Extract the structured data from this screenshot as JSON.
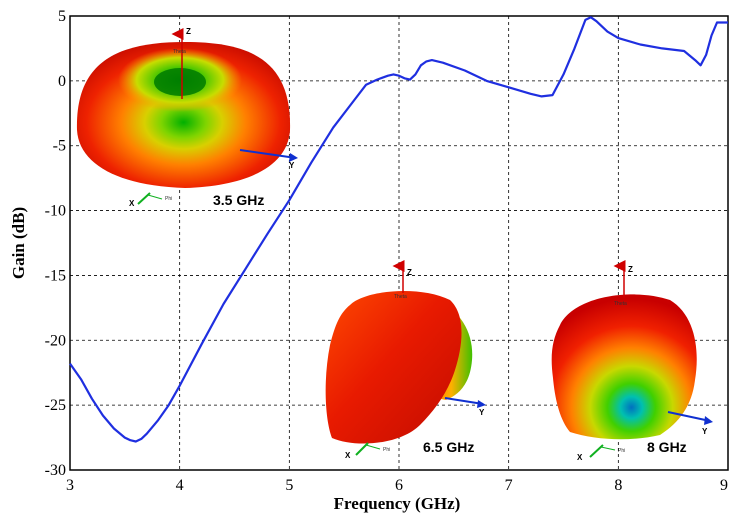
{
  "chart_data": {
    "type": "line",
    "xlabel": "Frequency (GHz)",
    "ylabel": "Gain (dB)",
    "xlim": [
      3,
      9
    ],
    "ylim": [
      -30,
      5
    ],
    "xticks": [
      "3",
      "4",
      "5",
      "6",
      "7",
      "8",
      "9"
    ],
    "yticks": [
      "5",
      "0",
      "-5",
      "-10",
      "-15",
      "-20",
      "-25",
      "-30"
    ],
    "grid": "dashed",
    "line_color": "#1f2fe0",
    "series": [
      {
        "x": [
          3.0,
          3.1,
          3.2,
          3.3,
          3.4,
          3.5,
          3.55,
          3.6,
          3.65,
          3.7,
          3.8,
          3.9,
          4.0,
          4.2,
          4.4,
          4.6,
          4.8,
          5.0,
          5.2,
          5.4,
          5.6,
          5.7,
          5.8,
          5.9,
          5.95,
          6.0,
          6.05,
          6.1,
          6.15,
          6.2,
          6.25,
          6.3,
          6.4,
          6.6,
          6.8,
          7.0,
          7.2,
          7.3,
          7.4,
          7.5,
          7.6,
          7.7,
          7.75,
          7.8,
          7.9,
          8.0,
          8.2,
          8.4,
          8.6,
          8.7,
          8.75,
          8.8,
          8.85,
          8.9,
          9.0,
          9.1
        ],
        "y": [
          -21.8,
          -23.0,
          -24.5,
          -25.8,
          -26.8,
          -27.5,
          -27.7,
          -27.8,
          -27.6,
          -27.2,
          -26.2,
          -25.0,
          -23.5,
          -20.3,
          -17.2,
          -14.5,
          -11.8,
          -9.2,
          -6.3,
          -3.6,
          -1.4,
          -0.3,
          0.1,
          0.4,
          0.5,
          0.4,
          0.2,
          0.1,
          0.5,
          1.2,
          1.5,
          1.6,
          1.4,
          0.8,
          0.0,
          -0.5,
          -1.0,
          -1.2,
          -1.1,
          0.5,
          2.5,
          4.7,
          4.9,
          4.6,
          3.8,
          3.3,
          2.8,
          2.5,
          2.3,
          1.6,
          1.2,
          2.0,
          3.5,
          4.5,
          4.5,
          4.5
        ]
      }
    ]
  },
  "patterns": [
    {
      "label": "3.5 GHz",
      "x_axis": "X",
      "y_axis": "Y",
      "z_axis": "Z",
      "theta": "Theta",
      "phi": "Phi"
    },
    {
      "label": "6.5 GHz",
      "x_axis": "X",
      "y_axis": "Y",
      "z_axis": "Z",
      "theta": "Theta",
      "phi": "Phi"
    },
    {
      "label": "8 GHz",
      "x_axis": "X",
      "y_axis": "Y",
      "z_axis": "Z",
      "theta": "Theta",
      "phi": "Phi"
    }
  ]
}
